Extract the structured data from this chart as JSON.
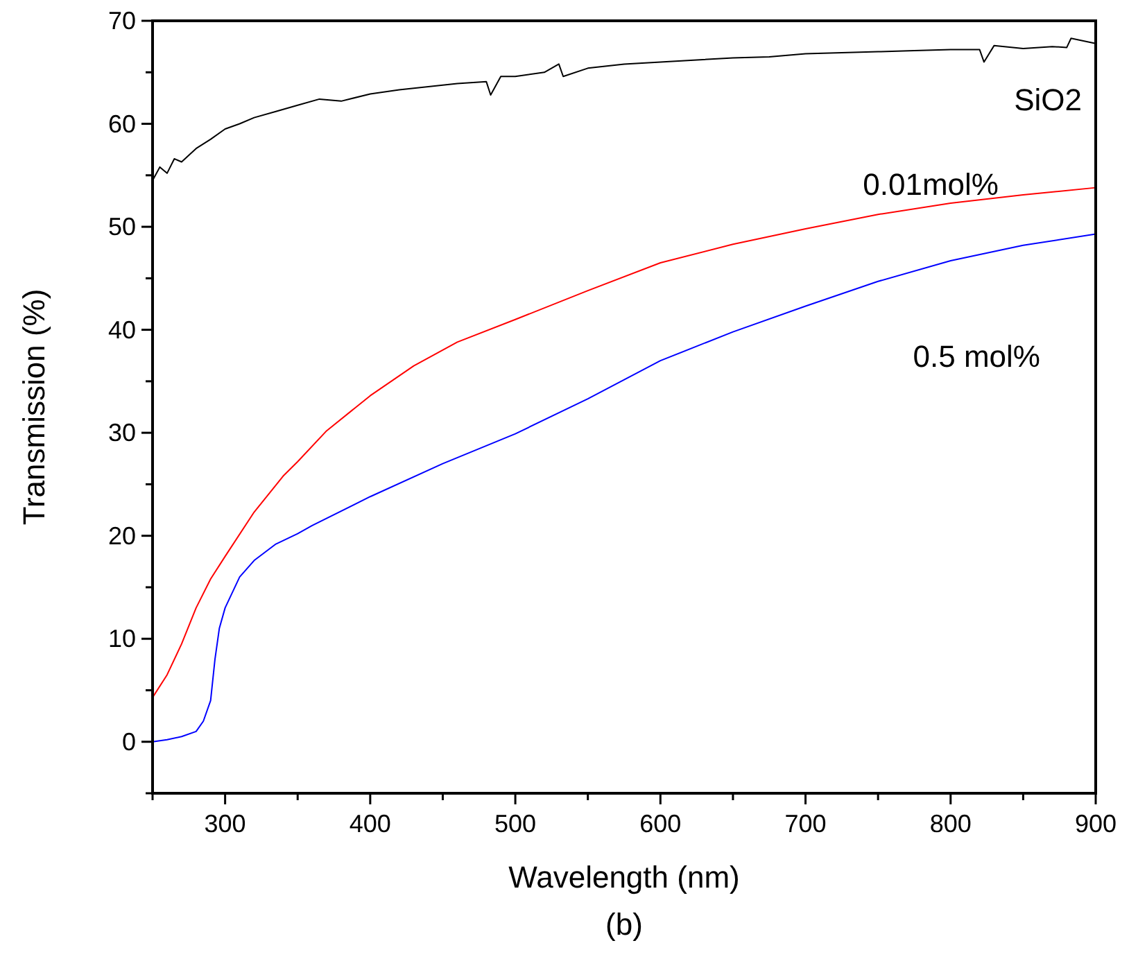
{
  "chart_data": {
    "type": "line",
    "xlabel": "Wavelength (nm)",
    "ylabel": "Transmission (%)",
    "annotations": [
      "(b)"
    ],
    "xlim": [
      250,
      900
    ],
    "ylim": [
      -5,
      70
    ],
    "xticks": [
      {
        "value": 250,
        "label": null
      },
      300,
      {
        "value": 350,
        "label": null
      },
      400,
      {
        "value": 450,
        "label": null
      },
      500,
      {
        "value": 550,
        "label": null
      },
      600,
      {
        "value": 650,
        "label": null
      },
      700,
      {
        "value": 750,
        "label": null
      },
      800,
      {
        "value": 850,
        "label": null
      },
      900
    ],
    "yticks": [
      {
        "value": -5,
        "label": null
      },
      0,
      {
        "value": 5,
        "label": null
      },
      10,
      {
        "value": 15,
        "label": null
      },
      20,
      {
        "value": 25,
        "label": null
      },
      30,
      {
        "value": 35,
        "label": null
      },
      40,
      {
        "value": 45,
        "label": null
      },
      50,
      {
        "value": 55,
        "label": null
      },
      60,
      {
        "value": 65,
        "label": null
      },
      70
    ],
    "grid": false,
    "marker": "none",
    "line_style": "solid",
    "series": [
      {
        "name": "SiO2",
        "color": "#000000",
        "x": [
          250,
          255,
          260,
          265,
          270,
          280,
          290,
          300,
          310,
          320,
          335,
          350,
          365,
          380,
          400,
          420,
          440,
          460,
          480,
          483,
          490,
          500,
          520,
          530,
          533,
          550,
          575,
          600,
          625,
          650,
          675,
          700,
          725,
          750,
          775,
          800,
          820,
          823,
          830,
          850,
          870,
          880,
          883,
          900
        ],
        "values": [
          54.5,
          55.8,
          55.2,
          56.6,
          56.3,
          57.6,
          58.5,
          59.5,
          60.0,
          60.6,
          61.2,
          61.8,
          62.4,
          62.2,
          62.9,
          63.3,
          63.6,
          63.9,
          64.1,
          62.8,
          64.6,
          64.6,
          65.0,
          65.8,
          64.6,
          65.4,
          65.8,
          66.0,
          66.2,
          66.4,
          66.5,
          66.8,
          66.9,
          67.0,
          67.1,
          67.2,
          67.2,
          66.0,
          67.6,
          67.3,
          67.5,
          67.4,
          68.3,
          67.8
        ]
      },
      {
        "name": "0.01mol%",
        "color": "#ff0000",
        "x": [
          250,
          260,
          270,
          280,
          290,
          300,
          320,
          340,
          350,
          370,
          400,
          430,
          460,
          500,
          550,
          600,
          650,
          700,
          750,
          800,
          850,
          900
        ],
        "values": [
          4.3,
          6.5,
          9.5,
          13,
          15.8,
          18,
          22.3,
          25.8,
          27.2,
          30.2,
          33.6,
          36.5,
          38.8,
          41,
          43.8,
          46.5,
          48.3,
          49.8,
          51.2,
          52.3,
          53.1,
          53.8
        ]
      },
      {
        "name": "0.5 mol%",
        "color": "#0000ff",
        "x": [
          250,
          260,
          270,
          280,
          285,
          290,
          293,
          296,
          300,
          310,
          320,
          335,
          350,
          360,
          400,
          450,
          500,
          550,
          600,
          650,
          700,
          750,
          800,
          850,
          900
        ],
        "values": [
          0,
          0.2,
          0.5,
          1,
          2,
          4,
          8,
          11,
          13,
          16,
          17.6,
          19.2,
          20.2,
          21,
          23.8,
          27,
          29.9,
          33.3,
          37,
          39.8,
          42.3,
          44.7,
          46.7,
          48.2,
          49.3
        ]
      }
    ]
  }
}
